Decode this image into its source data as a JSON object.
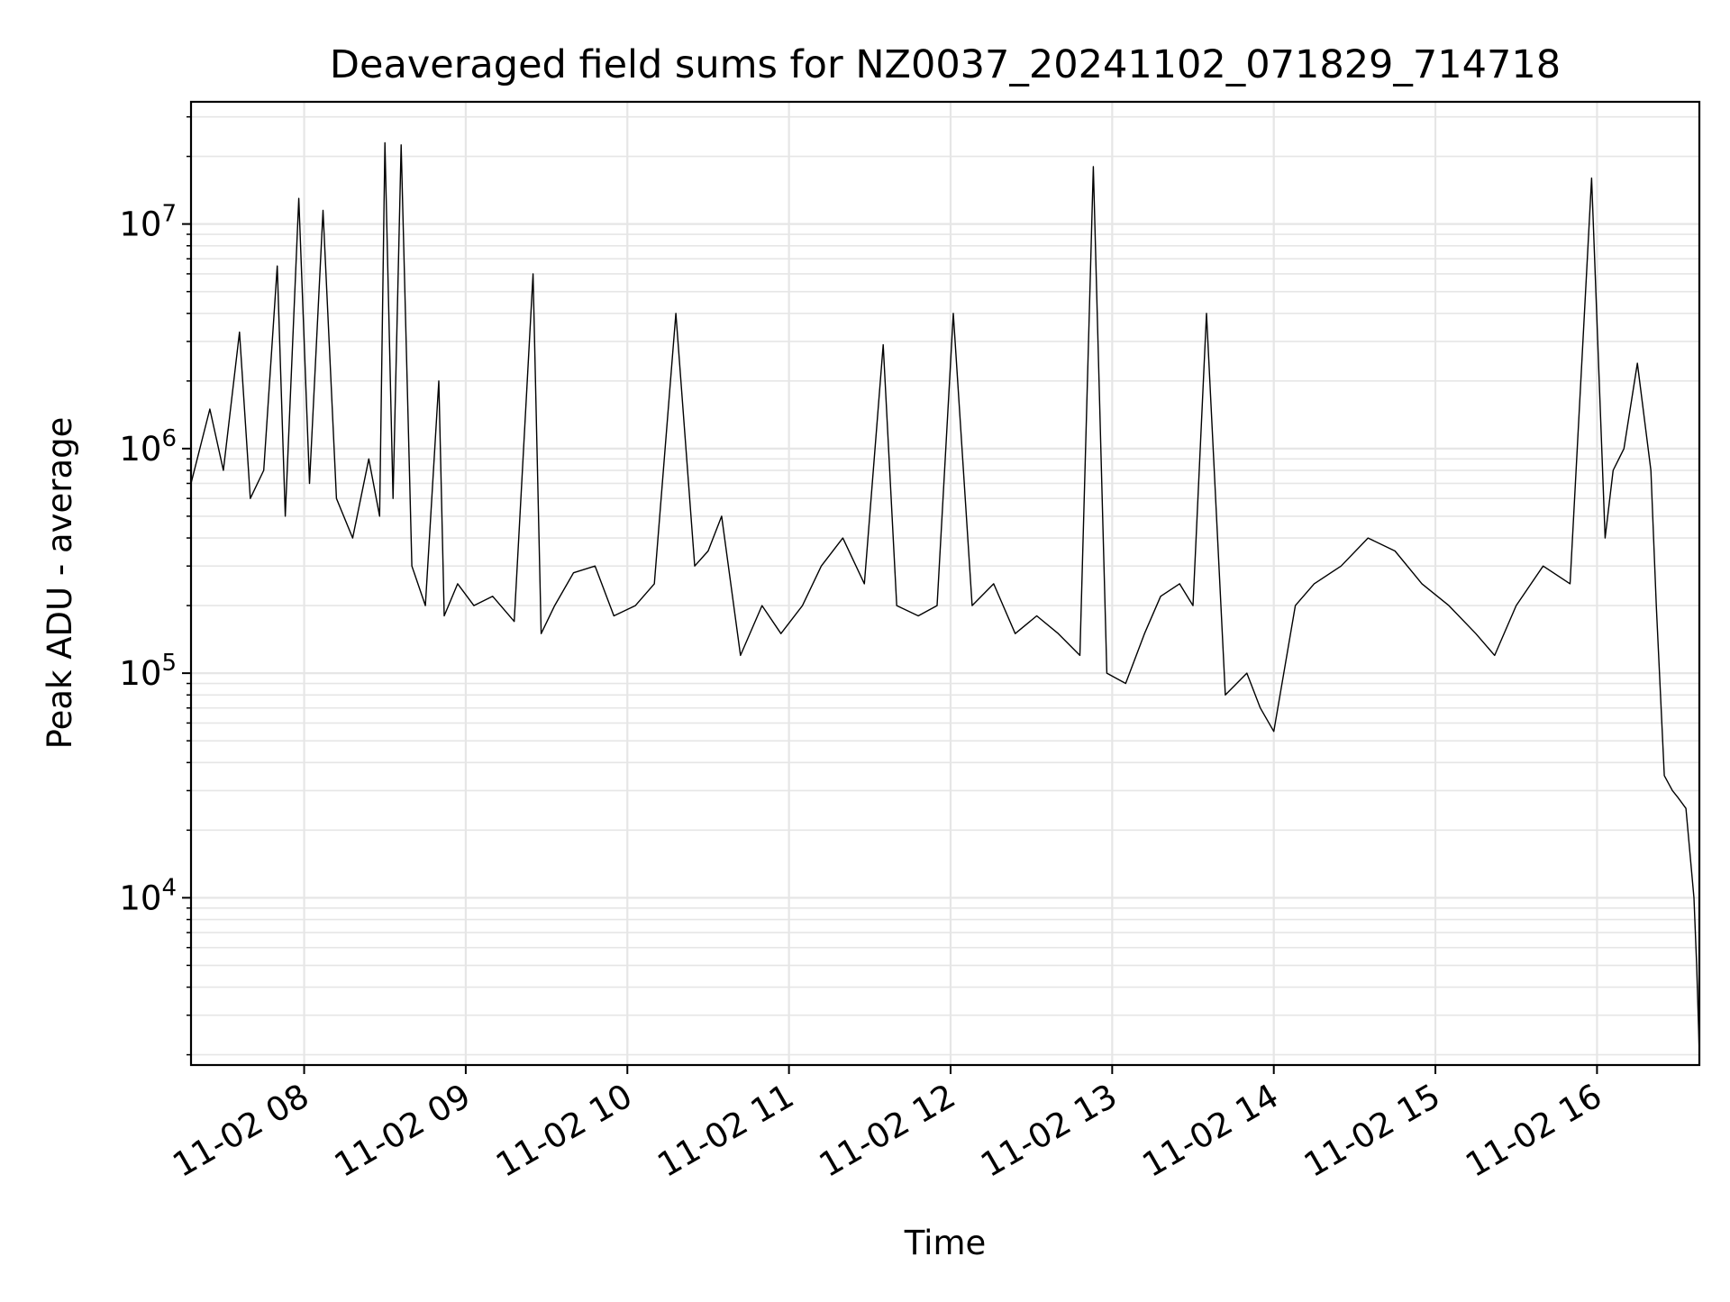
{
  "chart_data": {
    "type": "line",
    "title": "Deaveraged field sums for NZ0037_20241102_071829_714718",
    "xlabel": "Time",
    "ylabel": "Peak ADU - average",
    "yscale": "log",
    "ylim": [
      1800,
      35000000
    ],
    "xlim": [
      "11-02 07:18",
      "11-02 16:38"
    ],
    "grid": true,
    "line_color": "#000000",
    "grid_color": "#e6e6e6",
    "x_ticks": [
      "11-02 08",
      "11-02 09",
      "11-02 10",
      "11-02 11",
      "11-02 12",
      "11-02 13",
      "11-02 14",
      "11-02 15",
      "11-02 16"
    ],
    "y_ticks": [
      {
        "base": "10",
        "exp": "4",
        "value": 10000
      },
      {
        "base": "10",
        "exp": "5",
        "value": 100000
      },
      {
        "base": "10",
        "exp": "6",
        "value": 1000000
      },
      {
        "base": "10",
        "exp": "7",
        "value": 10000000
      }
    ],
    "series": [
      {
        "x": [
          "07:18",
          "07:25",
          "07:30",
          "07:36",
          "07:40",
          "07:45",
          "07:50",
          "07:53",
          "07:58",
          "08:02",
          "08:07",
          "08:12",
          "08:18",
          "08:24",
          "08:28",
          "08:30",
          "08:33",
          "08:36",
          "08:40",
          "08:45",
          "08:50",
          "08:52",
          "08:57",
          "09:03",
          "09:10",
          "09:18",
          "09:25",
          "09:28",
          "09:33",
          "09:40",
          "09:48",
          "09:55",
          "10:03",
          "10:10",
          "10:18",
          "10:25",
          "10:30",
          "10:35",
          "10:42",
          "10:50",
          "10:57",
          "11:05",
          "11:12",
          "11:20",
          "11:28",
          "11:35",
          "11:40",
          "11:48",
          "11:55",
          "12:01",
          "12:08",
          "12:16",
          "12:24",
          "12:32",
          "12:40",
          "12:48",
          "12:53",
          "12:58",
          "13:05",
          "13:12",
          "13:18",
          "13:25",
          "13:30",
          "13:35",
          "13:42",
          "13:50",
          "13:55",
          "14:00",
          "14:08",
          "14:15",
          "14:25",
          "14:35",
          "14:45",
          "14:55",
          "15:05",
          "15:15",
          "15:22",
          "15:30",
          "15:40",
          "15:50",
          "15:58",
          "16:03",
          "16:06",
          "16:10",
          "16:15",
          "16:20",
          "16:22",
          "16:25",
          "16:28",
          "16:30",
          "16:33",
          "16:36",
          "16:37",
          "16:38"
        ],
        "y": [
          700000,
          1500000,
          800000,
          3300000,
          600000,
          800000,
          6500000,
          500000,
          13000000,
          700000,
          11500000,
          600000,
          400000,
          900000,
          500000,
          23000000,
          600000,
          22500000,
          300000,
          200000,
          2000000,
          180000,
          250000,
          200000,
          220000,
          170000,
          6000000,
          150000,
          200000,
          280000,
          300000,
          180000,
          200000,
          250000,
          4000000,
          300000,
          350000,
          500000,
          120000,
          200000,
          150000,
          200000,
          300000,
          400000,
          250000,
          2900000,
          200000,
          180000,
          200000,
          4000000,
          200000,
          250000,
          150000,
          180000,
          150000,
          120000,
          18000000,
          100000,
          90000,
          150000,
          220000,
          250000,
          200000,
          4000000,
          80000,
          100000,
          70000,
          55000,
          200000,
          250000,
          300000,
          400000,
          350000,
          250000,
          200000,
          150000,
          120000,
          200000,
          300000,
          250000,
          16000000,
          400000,
          800000,
          1000000,
          2400000,
          800000,
          200000,
          35000,
          30000,
          28000,
          25000,
          10000,
          5000,
          2000
        ],
        "note": ""
      }
    ]
  }
}
